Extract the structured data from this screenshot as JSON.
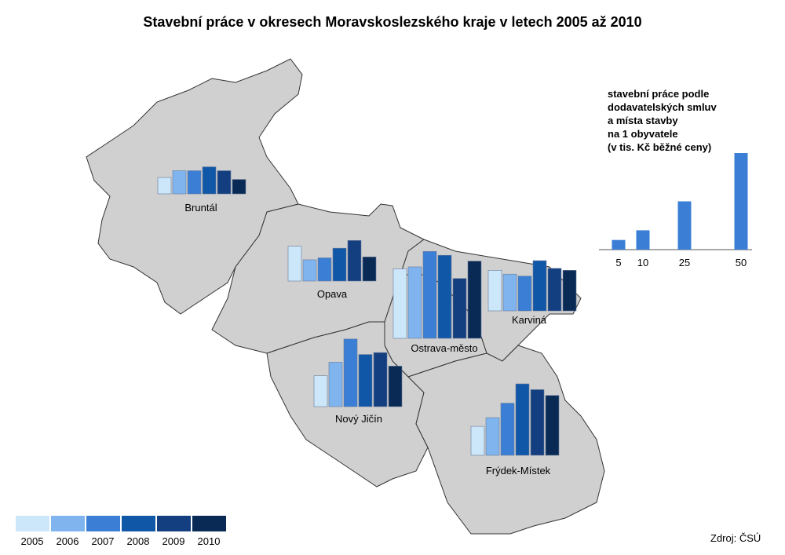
{
  "title": "Stavební práce v okresech Moravskoslezského kraje v letech 2005 až 2010",
  "years": [
    {
      "label": "2005",
      "color": "#cce6fa"
    },
    {
      "label": "2006",
      "color": "#7fb4ee"
    },
    {
      "label": "2007",
      "color": "#3a7fd5"
    },
    {
      "label": "2008",
      "color": "#1057a8"
    },
    {
      "label": "2009",
      "color": "#133f80"
    },
    {
      "label": "2010",
      "color": "#082a55"
    }
  ],
  "districts": [
    {
      "name": "Bruntál",
      "values": [
        8.5,
        12,
        12,
        14,
        12,
        7.5
      ]
    },
    {
      "name": "Opava",
      "values": [
        18,
        11,
        12,
        17,
        21,
        12.5
      ]
    },
    {
      "name": "Ostrava-město",
      "values": [
        36,
        37,
        45,
        43,
        31,
        40
      ]
    },
    {
      "name": "Karviná",
      "values": [
        21,
        19,
        18,
        26,
        22,
        21
      ]
    },
    {
      "name": "Nový Jičín",
      "values": [
        16,
        23,
        35,
        27,
        28,
        21
      ]
    },
    {
      "name": "Frýdek-Místek",
      "values": [
        15,
        19.5,
        27,
        37,
        34,
        31
      ]
    }
  ],
  "scale": {
    "title_lines": [
      "stavební práce podle",
      "dodavatelských smluv",
      "a místa stavby",
      "na 1 obyvatele",
      "(v tis. Kč běžné ceny)"
    ],
    "values": [
      5,
      10,
      25,
      50
    ],
    "color": "#3a7fd5"
  },
  "source": "Zdroj: ČSÚ"
}
